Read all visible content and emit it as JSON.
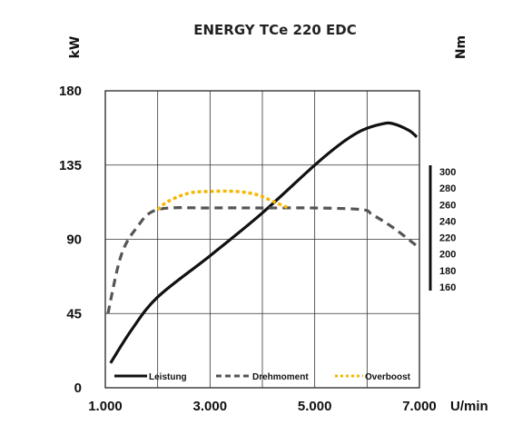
{
  "chart_data": {
    "type": "line",
    "title": "ENERGY TCe 220 EDC",
    "ylabel_left": "kW",
    "ylabel_right": "Nm",
    "xlabel": "U/min",
    "xlim": [
      1000,
      7000
    ],
    "ylim": [
      0,
      180
    ],
    "x_ticks": [
      1000,
      3000,
      5000,
      7000
    ],
    "x_tick_labels": [
      "1.000",
      "3.000",
      "5.000",
      "7.000"
    ],
    "y_ticks": [
      0,
      45,
      90,
      135,
      180
    ],
    "y_tick_labels": [
      "0",
      "45",
      "90",
      "135",
      "180"
    ],
    "right_axis_ticks": [
      "300",
      "280",
      "260",
      "240",
      "220",
      "200",
      "180",
      "160"
    ],
    "right_axis_range": [
      160,
      300
    ],
    "grid": true,
    "legend_position": "bottom",
    "series": [
      {
        "name": "Leistung",
        "style": "solid",
        "color": "#111111",
        "x": [
          1100,
          1500,
          2000,
          3000,
          4000,
          5000,
          5500,
          5900,
          6300,
          6500,
          6800,
          6950
        ],
        "y": [
          15,
          35,
          55,
          80,
          106,
          135,
          148,
          156,
          160,
          160,
          156,
          152
        ]
      },
      {
        "name": "Drehmoment",
        "style": "dashed",
        "color": "#555555",
        "x": [
          1050,
          1300,
          1600,
          2000,
          3000,
          4000,
          5000,
          5900,
          6100,
          6500,
          6950
        ],
        "y": [
          45,
          80,
          97,
          108,
          109,
          109,
          109,
          108,
          105,
          97,
          86
        ]
      },
      {
        "name": "Overboost",
        "style": "dotted",
        "color": "#f5b800",
        "x": [
          2000,
          2200,
          2600,
          3000,
          3500,
          3900,
          4200,
          4500
        ],
        "y": [
          108,
          113,
          118,
          119,
          119,
          117,
          113,
          109
        ]
      }
    ]
  }
}
